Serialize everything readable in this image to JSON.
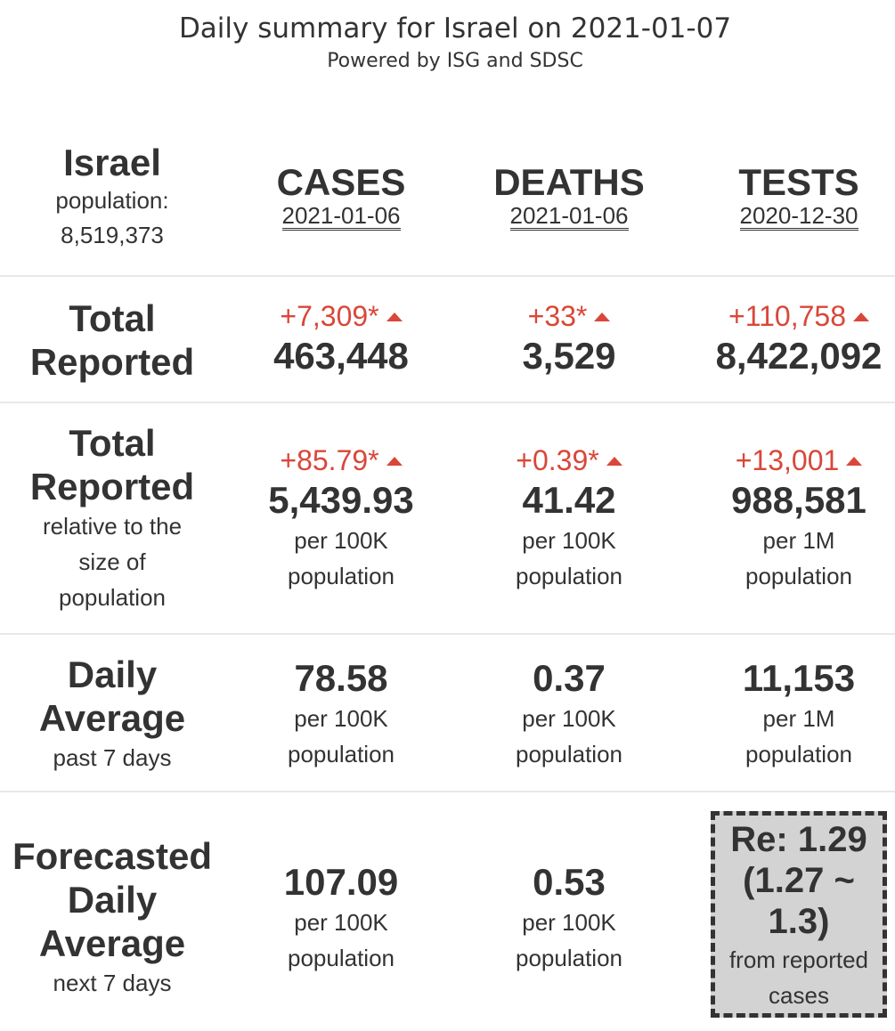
{
  "title": "Daily summary for Israel on 2021-01-07",
  "subtitle": "Powered by ISG and SDSC",
  "country": {
    "name": "Israel",
    "population_label": "population:",
    "population_value": "8,519,373"
  },
  "columns": [
    {
      "name": "CASES",
      "date": "2021-01-06"
    },
    {
      "name": "DEATHS",
      "date": "2021-01-06"
    },
    {
      "name": "TESTS",
      "date": "2020-12-30"
    }
  ],
  "rows": {
    "total": {
      "label_line1": "Total",
      "label_line2": "Reported",
      "cells": [
        {
          "delta": "+7,309*",
          "value": "463,448"
        },
        {
          "delta": "+33*",
          "value": "3,529"
        },
        {
          "delta": "+110,758",
          "value": "8,422,092"
        }
      ]
    },
    "relative": {
      "label_line1": "Total",
      "label_line2": "Reported",
      "sub_line1": "relative to the",
      "sub_line2": "size of",
      "sub_line3": "population",
      "cells": [
        {
          "delta": "+85.79*",
          "value": "5,439.93",
          "unit1": "per 100K",
          "unit2": "population"
        },
        {
          "delta": "+0.39*",
          "value": "41.42",
          "unit1": "per 100K",
          "unit2": "population"
        },
        {
          "delta": "+13,001",
          "value": "988,581",
          "unit1": "per 1M",
          "unit2": "population"
        }
      ]
    },
    "daily": {
      "label_line1": "Daily",
      "label_line2": "Average",
      "sub_line1": "past 7 days",
      "cells": [
        {
          "value": "78.58",
          "unit1": "per 100K",
          "unit2": "population"
        },
        {
          "value": "0.37",
          "unit1": "per 100K",
          "unit2": "population"
        },
        {
          "value": "11,153",
          "unit1": "per 1M",
          "unit2": "population"
        }
      ]
    },
    "forecast": {
      "label_line1": "Forecasted",
      "label_line2": "Daily",
      "label_line3": "Average",
      "sub_line1": "next 7 days",
      "cells": [
        {
          "value": "107.09",
          "unit1": "per 100K",
          "unit2": "population"
        },
        {
          "value": "0.53",
          "unit1": "per 100K",
          "unit2": "population"
        }
      ],
      "re": {
        "line1": "Re: 1.29",
        "line2": "(1.27 ~",
        "line3": "1.3)",
        "sub1": "from reported",
        "sub2": "cases"
      }
    }
  },
  "colors": {
    "increase": "#d9473a",
    "text": "#333333",
    "re_box_bg": "#d3d3d3"
  },
  "icons": {
    "increase": "triangle-up-icon"
  }
}
